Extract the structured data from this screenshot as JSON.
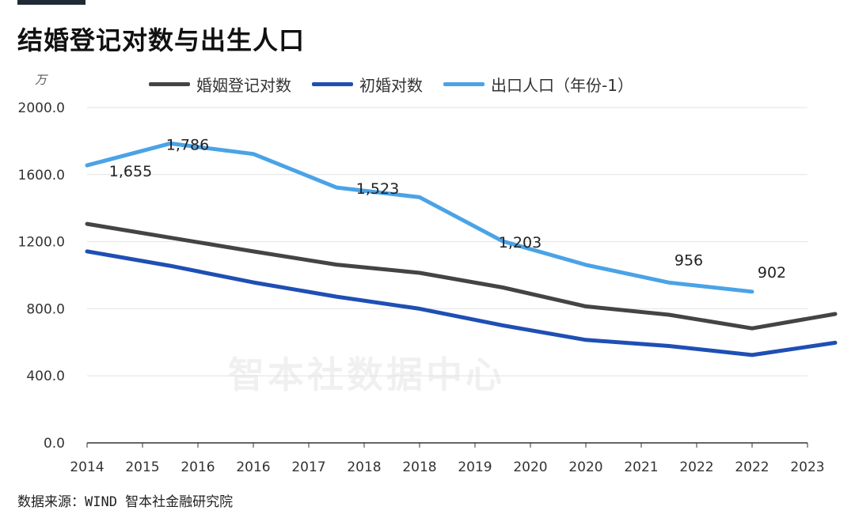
{
  "title": "结婚登记对数与出生人口",
  "unit": "万",
  "watermark": "智本社数据中心",
  "source": "数据来源：WIND 智本社金融研究院",
  "colors": {
    "marriage": "#444444",
    "first": "#1f4fb4",
    "births": "#4aa3e6",
    "topbar": "#1f2a36"
  },
  "chart_data": {
    "type": "line",
    "x": [
      "2014",
      "2015",
      "2016",
      "2016",
      "2017",
      "2018",
      "2018",
      "2019",
      "2020",
      "2020",
      "2021",
      "2022",
      "2022",
      "2023"
    ],
    "ylim": [
      0,
      2000
    ],
    "yticks": [
      "0.0",
      "400.0",
      "800.0",
      "1200.0",
      "1600.0",
      "2000.0"
    ],
    "grid": true,
    "legend_position": "top",
    "series": [
      {
        "name": "婚姻登记对数",
        "color": "#444444",
        "points": [
          [
            0,
            1306
          ],
          [
            3,
            1142
          ],
          [
            4.5,
            1063
          ],
          [
            6,
            1014
          ],
          [
            7.5,
            927
          ],
          [
            9,
            814
          ],
          [
            10.5,
            764
          ],
          [
            12,
            683
          ],
          [
            13.5,
            769
          ]
        ]
      },
      {
        "name": "初婚对数",
        "color": "#1f4fb4",
        "points": [
          [
            0,
            1142
          ],
          [
            1.5,
            1056
          ],
          [
            3,
            957
          ],
          [
            4.5,
            872
          ],
          [
            6,
            800
          ],
          [
            7.5,
            701
          ],
          [
            9,
            614
          ],
          [
            10.5,
            578
          ],
          [
            12,
            524
          ],
          [
            13.5,
            597
          ]
        ]
      },
      {
        "name": "出口人口（年份-1）",
        "color": "#4aa3e6",
        "points": [
          [
            0,
            1655
          ],
          [
            1.5,
            1786
          ],
          [
            3,
            1723
          ],
          [
            4.5,
            1523
          ],
          [
            6,
            1465
          ],
          [
            7.5,
            1203
          ],
          [
            9,
            1062
          ],
          [
            10.5,
            956
          ],
          [
            12,
            902
          ]
        ]
      }
    ],
    "data_labels": [
      {
        "x": 0,
        "value": "1,655",
        "y": 1655
      },
      {
        "x": 1.5,
        "value": "1,786",
        "y": 1786
      },
      {
        "x": 4.5,
        "value": "1,523",
        "y": 1523
      },
      {
        "x": 7.5,
        "value": "1,203",
        "y": 1203
      },
      {
        "x": 10.5,
        "value": "956",
        "y": 956
      },
      {
        "x": 12,
        "value": "902",
        "y": 902
      }
    ]
  }
}
